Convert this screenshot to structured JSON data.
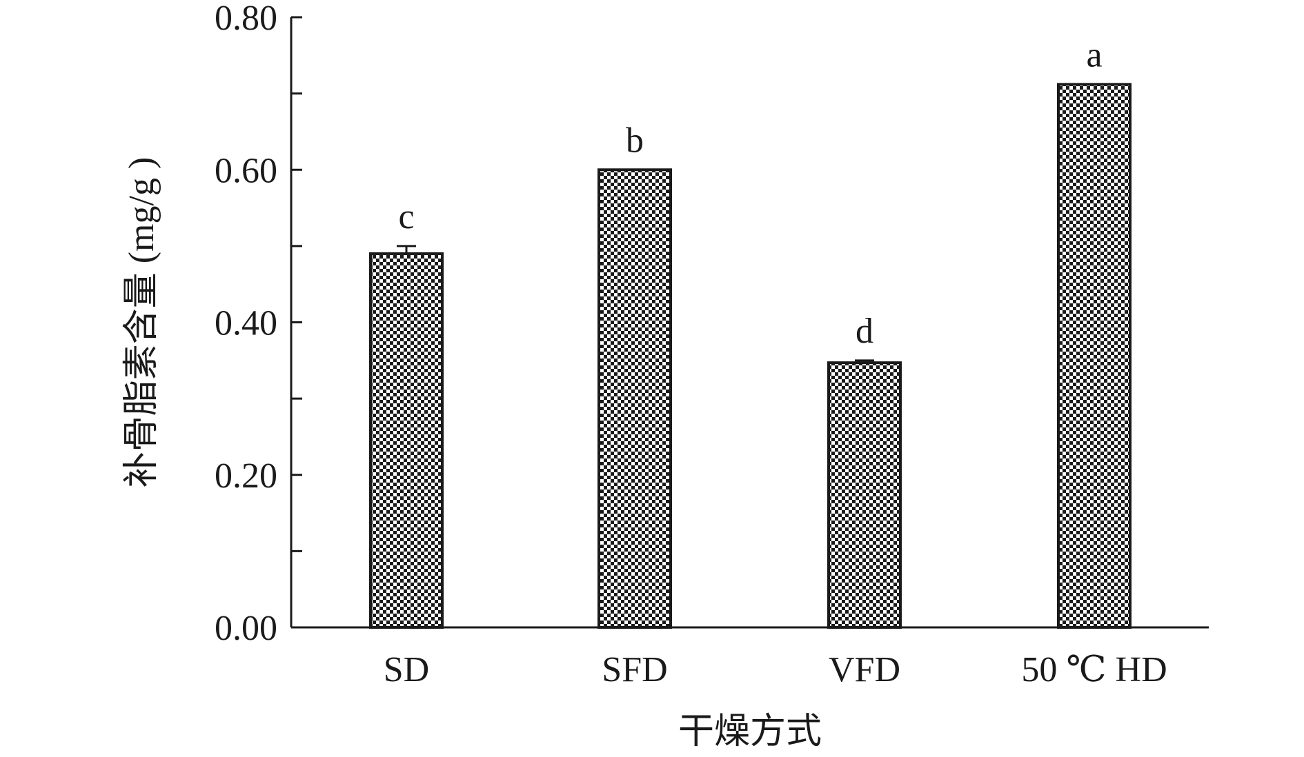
{
  "chart_data": {
    "type": "bar",
    "categories": [
      "SD",
      "SFD",
      "VFD",
      "50 ℃ HD"
    ],
    "values": [
      0.49,
      0.6,
      0.347,
      0.712
    ],
    "errors": [
      0.01,
      0.0,
      0.003,
      0.0
    ],
    "significance": [
      "c",
      "b",
      "d",
      "a"
    ],
    "xlabel": "干燥方式",
    "ylabel": "补骨脂素含量 (mg/g )",
    "ylim": [
      0,
      0.8
    ],
    "yticks": [
      "0.00",
      "0.20",
      "0.40",
      "0.60",
      "0.80"
    ],
    "yticks_values": [
      0,
      0.2,
      0.4,
      0.6,
      0.8
    ],
    "minor_ticks": [
      0.1,
      0.3,
      0.5,
      0.7
    ],
    "bar_fill": "checkerboard",
    "bar_colors": [
      "#1a1a1a",
      "#ffffff"
    ],
    "grid": false,
    "legend": "none"
  }
}
